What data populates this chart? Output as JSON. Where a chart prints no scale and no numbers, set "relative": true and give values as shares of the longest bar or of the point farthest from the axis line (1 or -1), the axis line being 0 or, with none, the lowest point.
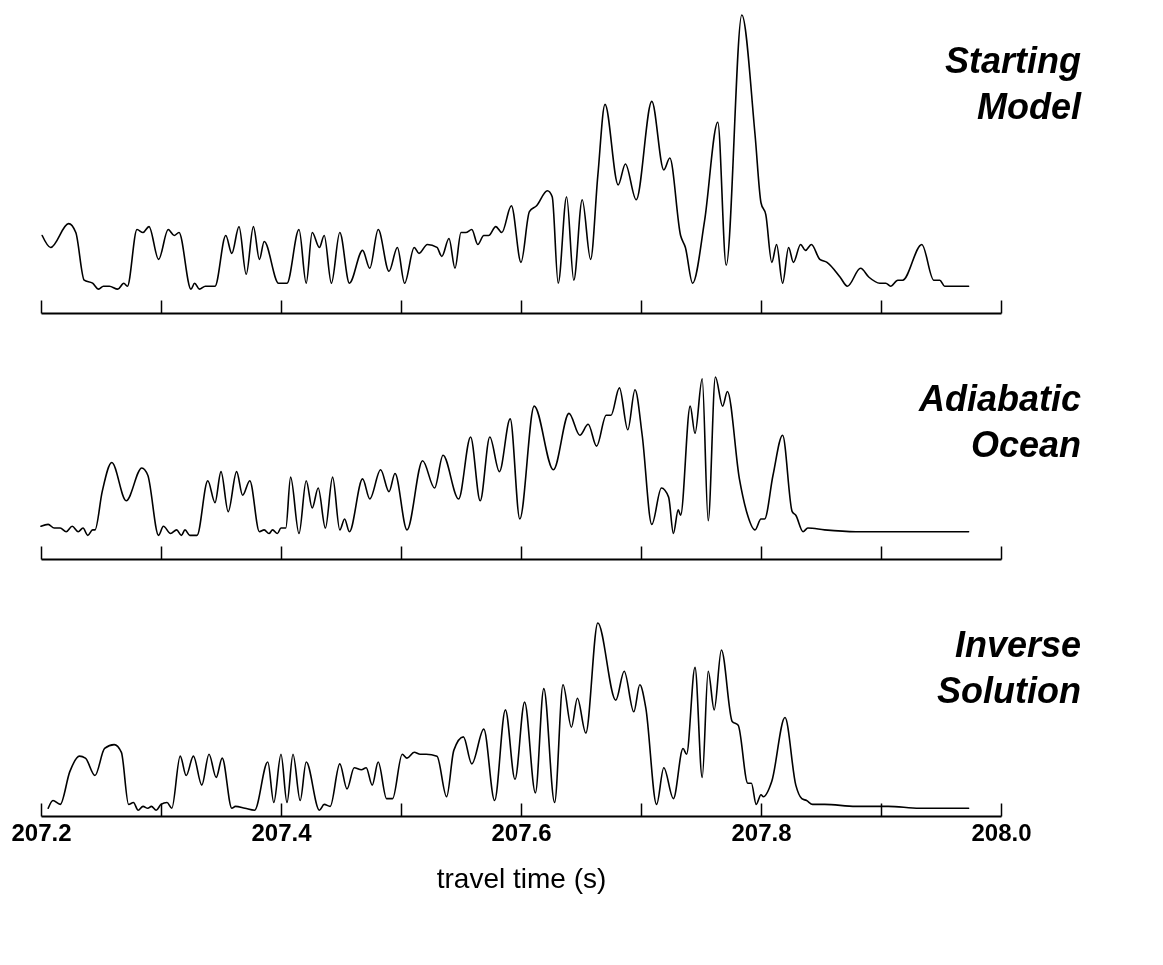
{
  "chart_data": [
    {
      "type": "line",
      "relative": true,
      "xlim": [
        207.2,
        208.0
      ],
      "tick_labels": false,
      "xticks": [
        207.2,
        207.3,
        207.4,
        207.5,
        207.6,
        207.7,
        207.8,
        207.9,
        208.0
      ],
      "series": [
        {
          "name": "Starting Model",
          "color": "#000000",
          "x": [
            207.201,
            207.208,
            207.223,
            207.229,
            207.236,
            207.243,
            207.248,
            207.252,
            207.257,
            207.264,
            207.269,
            207.272,
            207.28,
            207.285,
            207.29,
            207.298,
            207.306,
            207.311,
            207.315,
            207.325,
            207.328,
            207.332,
            207.337,
            207.345,
            207.354,
            207.359,
            207.365,
            207.371,
            207.377,
            207.382,
            207.386,
            207.398,
            207.405,
            207.415,
            207.421,
            207.426,
            207.432,
            207.436,
            207.442,
            207.449,
            207.457,
            207.468,
            207.474,
            207.481,
            207.49,
            207.497,
            207.503,
            207.511,
            207.515,
            207.522,
            207.53,
            207.534,
            207.54,
            207.545,
            207.55,
            207.554,
            207.559,
            207.564,
            207.569,
            207.573,
            207.579,
            207.584,
            207.592,
            207.6,
            207.607,
            207.613,
            207.622,
            207.626,
            207.631,
            207.638,
            207.644,
            207.651,
            207.658,
            207.664,
            207.67,
            207.681,
            207.687,
            207.696,
            207.709,
            207.719,
            207.724,
            207.733,
            207.737,
            207.743,
            207.753,
            207.764,
            207.771,
            207.784,
            207.795,
            207.8,
            207.804,
            207.809,
            207.813,
            207.818,
            207.823,
            207.827,
            207.833,
            207.837,
            207.842,
            207.849,
            207.855,
            207.866,
            207.872,
            207.883,
            207.89,
            207.899,
            207.904,
            207.908,
            207.914,
            207.918,
            207.934,
            207.944,
            207.949,
            207.953,
            207.959,
            207.965,
            207.973
          ],
          "values": [
            0.26,
            0.22,
            0.3,
            0.27,
            0.11,
            0.1,
            0.08,
            0.09,
            0.09,
            0.08,
            0.1,
            0.09,
            0.28,
            0.27,
            0.29,
            0.18,
            0.28,
            0.26,
            0.27,
            0.08,
            0.1,
            0.08,
            0.09,
            0.09,
            0.26,
            0.2,
            0.29,
            0.13,
            0.29,
            0.18,
            0.24,
            0.1,
            0.1,
            0.28,
            0.1,
            0.27,
            0.22,
            0.26,
            0.1,
            0.27,
            0.1,
            0.21,
            0.15,
            0.28,
            0.14,
            0.22,
            0.1,
            0.22,
            0.2,
            0.23,
            0.22,
            0.19,
            0.25,
            0.15,
            0.27,
            0.27,
            0.28,
            0.23,
            0.26,
            0.26,
            0.29,
            0.27,
            0.36,
            0.17,
            0.34,
            0.36,
            0.41,
            0.39,
            0.1,
            0.39,
            0.11,
            0.38,
            0.18,
            0.46,
            0.7,
            0.43,
            0.5,
            0.38,
            0.71,
            0.48,
            0.52,
            0.26,
            0.22,
            0.1,
            0.31,
            0.64,
            0.16,
            1.0,
            0.6,
            0.37,
            0.33,
            0.17,
            0.23,
            0.1,
            0.22,
            0.17,
            0.23,
            0.21,
            0.23,
            0.18,
            0.17,
            0.12,
            0.09,
            0.15,
            0.12,
            0.1,
            0.1,
            0.09,
            0.11,
            0.11,
            0.23,
            0.11,
            0.11,
            0.09,
            0.09,
            0.09,
            0.09
          ]
        }
      ]
    },
    {
      "type": "line",
      "relative": true,
      "xlim": [
        207.2,
        208.0
      ],
      "tick_labels": false,
      "xticks": [
        207.2,
        207.3,
        207.4,
        207.5,
        207.6,
        207.7,
        207.8,
        207.9,
        208.0
      ],
      "series": [
        {
          "name": "Adiabatic Ocean",
          "color": "#000000",
          "x": [
            207.2,
            207.206,
            207.211,
            207.216,
            207.221,
            207.226,
            207.231,
            207.235,
            207.239,
            207.243,
            207.245,
            207.251,
            207.259,
            207.271,
            207.284,
            207.289,
            207.298,
            207.302,
            207.308,
            207.313,
            207.317,
            207.32,
            207.324,
            207.33,
            207.339,
            207.345,
            207.35,
            207.356,
            207.363,
            207.368,
            207.374,
            207.382,
            207.386,
            207.39,
            207.393,
            207.397,
            207.4,
            207.404,
            207.408,
            207.415,
            207.421,
            207.426,
            207.431,
            207.437,
            207.443,
            207.449,
            207.453,
            207.457,
            207.468,
            207.474,
            207.483,
            207.49,
            207.495,
            207.505,
            207.518,
            207.528,
            207.535,
            207.548,
            207.558,
            207.566,
            207.574,
            207.582,
            207.591,
            207.599,
            207.611,
            207.627,
            207.64,
            207.649,
            207.656,
            207.663,
            207.671,
            207.675,
            207.682,
            207.689,
            207.695,
            207.701,
            207.709,
            207.717,
            207.723,
            207.727,
            207.731,
            207.733,
            207.741,
            207.745,
            207.751,
            207.756,
            207.762,
            207.768,
            207.772,
            207.782,
            207.788,
            207.795,
            207.8,
            207.803,
            207.81,
            207.818,
            207.826,
            207.829,
            207.835,
            207.839,
            207.853,
            207.879,
            207.906,
            207.932,
            207.973
          ],
          "values": [
            0.18,
            0.19,
            0.17,
            0.17,
            0.15,
            0.18,
            0.15,
            0.17,
            0.13,
            0.16,
            0.16,
            0.37,
            0.53,
            0.32,
            0.5,
            0.46,
            0.13,
            0.18,
            0.14,
            0.16,
            0.13,
            0.16,
            0.13,
            0.13,
            0.43,
            0.31,
            0.48,
            0.26,
            0.48,
            0.35,
            0.43,
            0.15,
            0.16,
            0.14,
            0.16,
            0.14,
            0.17,
            0.17,
            0.45,
            0.14,
            0.43,
            0.28,
            0.39,
            0.17,
            0.45,
            0.16,
            0.22,
            0.15,
            0.44,
            0.33,
            0.49,
            0.37,
            0.47,
            0.16,
            0.54,
            0.39,
            0.57,
            0.33,
            0.67,
            0.32,
            0.67,
            0.48,
            0.77,
            0.22,
            0.84,
            0.49,
            0.8,
            0.68,
            0.74,
            0.62,
            0.79,
            0.79,
            0.94,
            0.71,
            0.93,
            0.68,
            0.19,
            0.39,
            0.34,
            0.14,
            0.27,
            0.24,
            0.84,
            0.69,
            0.99,
            0.21,
            1.0,
            0.84,
            0.92,
            0.44,
            0.26,
            0.16,
            0.22,
            0.22,
            0.46,
            0.68,
            0.26,
            0.24,
            0.15,
            0.17,
            0.16,
            0.15,
            0.15,
            0.15,
            0.15
          ]
        }
      ]
    },
    {
      "type": "line",
      "relative": true,
      "xlim": [
        207.2,
        208.0
      ],
      "tick_labels": "x",
      "xlabel": "travel time (s)",
      "xticks": [
        207.2,
        {
          "value": 207.3,
          "label": null
        },
        207.4,
        {
          "value": 207.5,
          "label": null
        },
        207.6,
        {
          "value": 207.7,
          "label": null
        },
        207.8,
        {
          "value": 207.9,
          "label": null
        },
        {
          "value": 208.0,
          "label": "208.0"
        }
      ],
      "series": [
        {
          "name": "Inverse Solution",
          "color": "#000000",
          "x": [
            207.206,
            207.21,
            207.216,
            207.224,
            207.232,
            207.237,
            207.245,
            207.253,
            207.261,
            207.267,
            207.273,
            207.277,
            207.281,
            207.285,
            207.289,
            207.292,
            207.296,
            207.3,
            207.305,
            207.309,
            207.316,
            207.321,
            207.327,
            207.334,
            207.34,
            207.346,
            207.351,
            207.359,
            207.362,
            207.37,
            207.378,
            207.389,
            207.394,
            207.4,
            207.405,
            207.41,
            207.416,
            207.421,
            207.432,
            207.436,
            207.441,
            207.449,
            207.455,
            207.461,
            207.467,
            207.471,
            207.476,
            207.481,
            207.488,
            207.493,
            207.501,
            207.505,
            207.511,
            207.516,
            207.521,
            207.53,
            207.538,
            207.544,
            207.552,
            207.559,
            207.569,
            207.578,
            207.587,
            207.595,
            207.603,
            207.612,
            207.619,
            207.628,
            207.635,
            207.642,
            207.647,
            207.654,
            207.664,
            207.679,
            207.686,
            207.694,
            207.699,
            207.704,
            207.713,
            207.719,
            207.727,
            207.735,
            207.738,
            207.745,
            207.751,
            207.756,
            207.761,
            207.767,
            207.776,
            207.781,
            207.789,
            207.792,
            207.796,
            207.8,
            207.802,
            207.809,
            207.82,
            207.829,
            207.834,
            207.838,
            207.843,
            207.853,
            207.879,
            207.906,
            207.932,
            207.973
          ],
          "values": [
            0.04,
            0.08,
            0.06,
            0.23,
            0.31,
            0.3,
            0.21,
            0.35,
            0.37,
            0.33,
            0.06,
            0.07,
            0.03,
            0.05,
            0.04,
            0.05,
            0.03,
            0.06,
            0.07,
            0.04,
            0.31,
            0.21,
            0.31,
            0.16,
            0.32,
            0.2,
            0.3,
            0.04,
            0.05,
            0.04,
            0.03,
            0.28,
            0.07,
            0.32,
            0.07,
            0.32,
            0.08,
            0.28,
            0.03,
            0.06,
            0.05,
            0.27,
            0.14,
            0.25,
            0.24,
            0.25,
            0.16,
            0.28,
            0.09,
            0.09,
            0.32,
            0.3,
            0.33,
            0.32,
            0.32,
            0.31,
            0.1,
            0.34,
            0.41,
            0.27,
            0.45,
            0.08,
            0.55,
            0.19,
            0.59,
            0.12,
            0.66,
            0.07,
            0.68,
            0.46,
            0.61,
            0.43,
            1.0,
            0.6,
            0.75,
            0.54,
            0.68,
            0.56,
            0.06,
            0.25,
            0.09,
            0.35,
            0.32,
            0.77,
            0.2,
            0.75,
            0.55,
            0.86,
            0.49,
            0.47,
            0.17,
            0.17,
            0.06,
            0.11,
            0.1,
            0.18,
            0.51,
            0.16,
            0.09,
            0.08,
            0.06,
            0.06,
            0.05,
            0.05,
            0.04,
            0.04
          ]
        }
      ]
    }
  ]
}
